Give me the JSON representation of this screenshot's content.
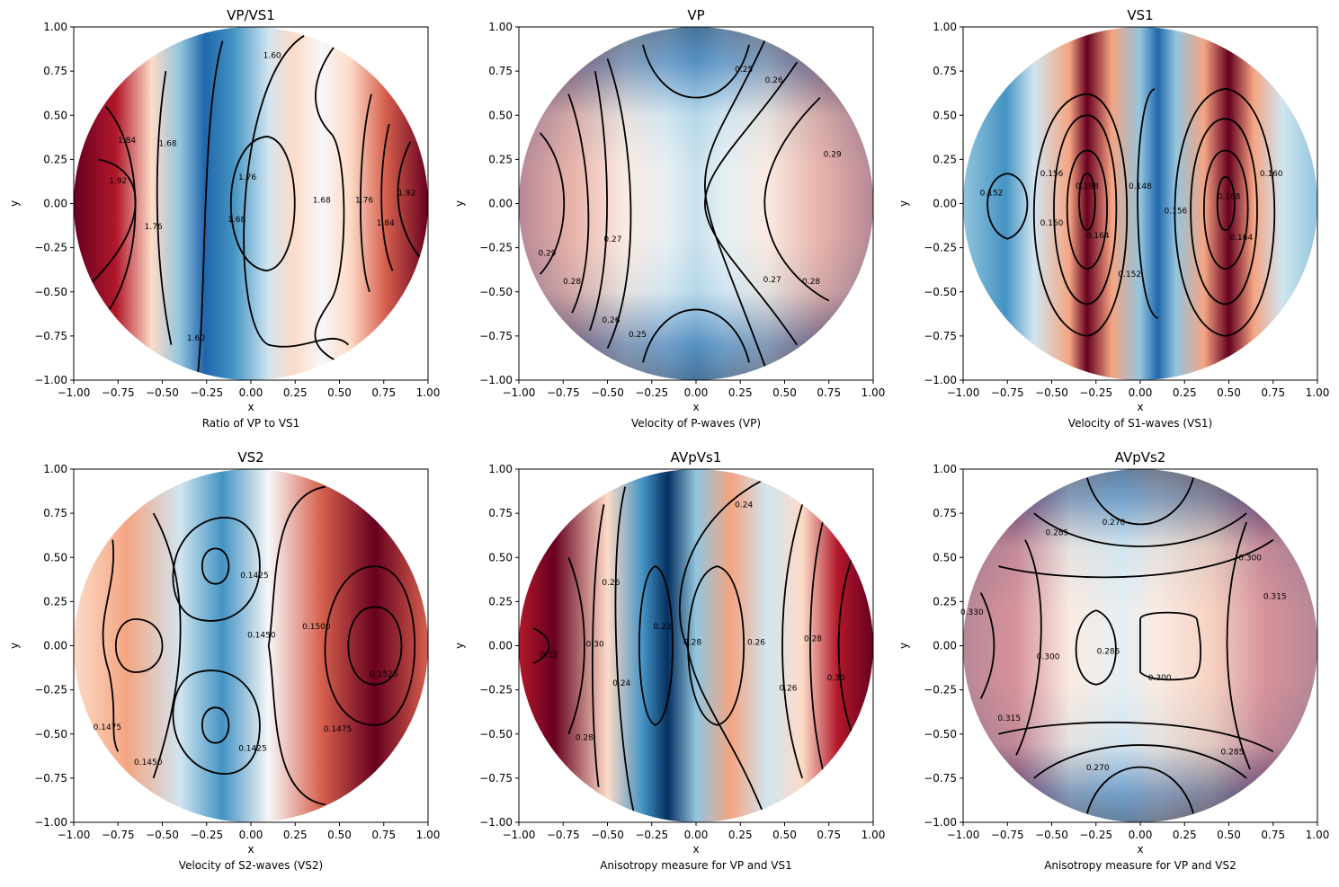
{
  "figure": {
    "xlabel": "x",
    "ylabel": "y",
    "xticks": [
      "−1.00",
      "−0.75",
      "−0.50",
      "−0.25",
      "0.00",
      "0.25",
      "0.50",
      "0.75",
      "1.00"
    ],
    "yticks": [
      "−1.00",
      "−0.75",
      "−0.50",
      "−0.25",
      "0.00",
      "0.25",
      "0.50",
      "0.75",
      "1.00"
    ]
  },
  "colormap": {
    "name": "RdBu_r",
    "low": "#053061",
    "mid": "#f7f7f7",
    "high": "#67001f"
  },
  "chart_data": [
    {
      "type": "heatmap",
      "title": "VP/VS1",
      "caption": "Ratio of VP to VS1",
      "xlim": [
        -1,
        1
      ],
      "ylim": [
        -1,
        1
      ],
      "domain": "unit-disk",
      "contour_labels": [
        {
          "text": "1.60",
          "x": 0.12,
          "y": 0.84
        },
        {
          "text": "1.84",
          "x": -0.7,
          "y": 0.36
        },
        {
          "text": "1.92",
          "x": -0.75,
          "y": 0.13
        },
        {
          "text": "1.68",
          "x": -0.47,
          "y": 0.34
        },
        {
          "text": "1.76",
          "x": -0.55,
          "y": -0.13
        },
        {
          "text": "1.76",
          "x": -0.02,
          "y": 0.15
        },
        {
          "text": "1.68",
          "x": -0.08,
          "y": -0.09
        },
        {
          "text": "1.68",
          "x": 0.4,
          "y": 0.02
        },
        {
          "text": "1.76",
          "x": 0.64,
          "y": 0.02
        },
        {
          "text": "1.84",
          "x": 0.76,
          "y": -0.11
        },
        {
          "text": "1.92",
          "x": 0.88,
          "y": 0.06
        },
        {
          "text": "1.60",
          "x": -0.31,
          "y": -0.76
        }
      ]
    },
    {
      "type": "heatmap",
      "title": "VP",
      "caption": "Velocity of P-waves (VP)",
      "xlim": [
        -1,
        1
      ],
      "ylim": [
        -1,
        1
      ],
      "domain": "unit-disk",
      "contour_labels": [
        {
          "text": "0.25",
          "x": 0.27,
          "y": 0.76
        },
        {
          "text": "0.26",
          "x": 0.44,
          "y": 0.7
        },
        {
          "text": "0.29",
          "x": 0.77,
          "y": 0.28
        },
        {
          "text": "0.29",
          "x": -0.84,
          "y": -0.28
        },
        {
          "text": "0.28",
          "x": -0.7,
          "y": -0.44
        },
        {
          "text": "0.27",
          "x": -0.47,
          "y": -0.2
        },
        {
          "text": "0.27",
          "x": 0.43,
          "y": -0.43
        },
        {
          "text": "0.28",
          "x": 0.65,
          "y": -0.44
        },
        {
          "text": "0.26",
          "x": -0.48,
          "y": -0.66
        },
        {
          "text": "0.25",
          "x": -0.33,
          "y": -0.74
        }
      ]
    },
    {
      "type": "heatmap",
      "title": "VS1",
      "caption": "Velocity of S1-waves (VS1)",
      "xlim": [
        -1,
        1
      ],
      "ylim": [
        -1,
        1
      ],
      "domain": "unit-disk",
      "contour_labels": [
        {
          "text": "0.152",
          "x": -0.84,
          "y": 0.06
        },
        {
          "text": "0.156",
          "x": -0.5,
          "y": 0.17
        },
        {
          "text": "0.168",
          "x": -0.3,
          "y": 0.1
        },
        {
          "text": "0.148",
          "x": 0.0,
          "y": 0.1
        },
        {
          "text": "0.160",
          "x": -0.5,
          "y": -0.11
        },
        {
          "text": "0.164",
          "x": -0.24,
          "y": -0.18
        },
        {
          "text": "0.152",
          "x": -0.06,
          "y": -0.4
        },
        {
          "text": "0.156",
          "x": 0.2,
          "y": -0.04
        },
        {
          "text": "0.168",
          "x": 0.5,
          "y": 0.04
        },
        {
          "text": "0.164",
          "x": 0.57,
          "y": -0.19
        },
        {
          "text": "0.160",
          "x": 0.74,
          "y": 0.17
        }
      ]
    },
    {
      "type": "heatmap",
      "title": "VS2",
      "caption": "Velocity of S2-waves (VS2)",
      "xlim": [
        -1,
        1
      ],
      "ylim": [
        -1,
        1
      ],
      "domain": "unit-disk",
      "contour_labels": [
        {
          "text": "0.1425",
          "x": 0.02,
          "y": 0.4
        },
        {
          "text": "0.1450",
          "x": 0.06,
          "y": 0.06
        },
        {
          "text": "0.1500",
          "x": 0.37,
          "y": 0.11
        },
        {
          "text": "0.1525",
          "x": 0.75,
          "y": -0.16
        },
        {
          "text": "0.1475",
          "x": -0.81,
          "y": -0.46
        },
        {
          "text": "0.1475",
          "x": 0.49,
          "y": -0.47
        },
        {
          "text": "0.1450",
          "x": -0.58,
          "y": -0.66
        },
        {
          "text": "0.1425",
          "x": 0.01,
          "y": -0.58
        }
      ]
    },
    {
      "type": "heatmap",
      "title": "AVpVs1",
      "caption": "Anisotropy measure for VP and VS1",
      "xlim": [
        -1,
        1
      ],
      "ylim": [
        -1,
        1
      ],
      "domain": "unit-disk",
      "contour_labels": [
        {
          "text": "0.24",
          "x": 0.27,
          "y": 0.8
        },
        {
          "text": "0.26",
          "x": -0.48,
          "y": 0.36
        },
        {
          "text": "0.22",
          "x": -0.19,
          "y": 0.11
        },
        {
          "text": "0.32",
          "x": -0.83,
          "y": -0.05
        },
        {
          "text": "0.30",
          "x": -0.57,
          "y": 0.01
        },
        {
          "text": "0.24",
          "x": -0.42,
          "y": -0.21
        },
        {
          "text": "0.28",
          "x": -0.02,
          "y": 0.02
        },
        {
          "text": "0.26",
          "x": 0.34,
          "y": 0.02
        },
        {
          "text": "0.26",
          "x": 0.52,
          "y": -0.24
        },
        {
          "text": "0.28",
          "x": 0.66,
          "y": 0.04
        },
        {
          "text": "0.30",
          "x": 0.79,
          "y": -0.18
        },
        {
          "text": "0.28",
          "x": -0.63,
          "y": -0.52
        }
      ]
    },
    {
      "type": "heatmap",
      "title": "AVpVs2",
      "caption": "Anisotropy measure for VP and VS2",
      "xlim": [
        -1,
        1
      ],
      "ylim": [
        -1,
        1
      ],
      "domain": "unit-disk",
      "contour_labels": [
        {
          "text": "0.270",
          "x": -0.15,
          "y": 0.7
        },
        {
          "text": "0.285",
          "x": -0.47,
          "y": 0.64
        },
        {
          "text": "0.300",
          "x": 0.62,
          "y": 0.5
        },
        {
          "text": "0.315",
          "x": 0.76,
          "y": 0.28
        },
        {
          "text": "0.330",
          "x": -0.95,
          "y": 0.19
        },
        {
          "text": "0.300",
          "x": -0.52,
          "y": -0.06
        },
        {
          "text": "0.285",
          "x": -0.18,
          "y": -0.03
        },
        {
          "text": "0.300",
          "x": 0.11,
          "y": -0.18
        },
        {
          "text": "0.315",
          "x": -0.74,
          "y": -0.41
        },
        {
          "text": "0.285",
          "x": 0.52,
          "y": -0.6
        },
        {
          "text": "0.270",
          "x": -0.24,
          "y": -0.69
        }
      ]
    }
  ]
}
